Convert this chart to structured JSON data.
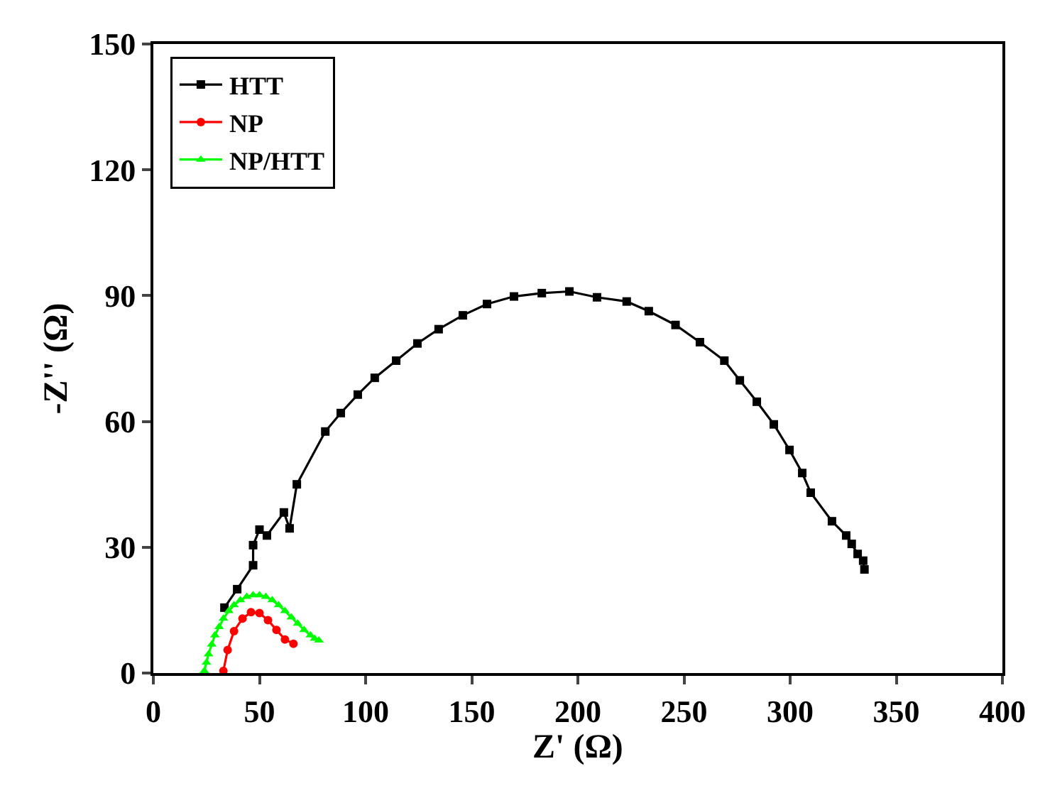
{
  "chart_data": {
    "type": "line",
    "xlabel": "Z' (Ω)",
    "ylabel": "-Z'' (Ω)",
    "xlim": [
      0,
      400
    ],
    "ylim": [
      0,
      150
    ],
    "xticks": [
      0,
      50,
      100,
      150,
      200,
      250,
      300,
      350,
      400
    ],
    "yticks": [
      0,
      30,
      60,
      90,
      120,
      150
    ],
    "grid": false,
    "legend": "top left",
    "line_style": "solid",
    "series": [
      {
        "name": "HTT",
        "color": "#000000",
        "marker": "square",
        "x": [
          33.5,
          39.5,
          47,
          47,
          50,
          53.5,
          61.5,
          64.2,
          67.6,
          81,
          88.3,
          96.3,
          104.3,
          114.4,
          124.4,
          134.4,
          145.8,
          157.2,
          169.9,
          183,
          196,
          209,
          223,
          233.4,
          246,
          257.5,
          269,
          276.3,
          284.3,
          292.3,
          299.7,
          305.7,
          309.7,
          319.7,
          326.4,
          329,
          331.8,
          334.4,
          335
        ],
        "values": [
          15.6,
          20,
          25.7,
          30.5,
          34.2,
          32.8,
          38.3,
          34.5,
          45,
          57.6,
          62,
          66.4,
          70.4,
          74.5,
          78.6,
          82,
          85.3,
          88,
          89.8,
          90.6,
          91,
          89.6,
          88.6,
          86.3,
          83,
          78.9,
          74.5,
          69.8,
          64.7,
          59.3,
          53.2,
          47.7,
          43,
          36.2,
          32.8,
          30.8,
          28.4,
          26.8,
          24.7
        ]
      },
      {
        "name": "NP",
        "color": "#ff0000",
        "marker": "circle",
        "x": [
          33,
          35,
          38,
          42,
          46,
          50,
          54,
          58,
          62,
          66
        ],
        "values": [
          0.5,
          5.5,
          10,
          13,
          14.5,
          14.3,
          12.6,
          10.3,
          8,
          7
        ]
      },
      {
        "name": "NP/HTT",
        "color": "#00ff00",
        "marker": "triangle",
        "x": [
          24,
          25,
          26,
          27.5,
          29,
          31,
          33,
          35.5,
          38,
          41,
          44,
          47,
          50,
          53,
          56,
          59,
          62,
          65,
          68,
          71,
          74,
          76,
          78
        ],
        "values": [
          0.5,
          2.5,
          4.5,
          6.8,
          9,
          11,
          13,
          14.8,
          16.2,
          17.4,
          18.2,
          18.6,
          18.6,
          18.2,
          17.4,
          16.2,
          14.8,
          13.3,
          11.8,
          10.3,
          9,
          8.2,
          7.8
        ]
      }
    ]
  }
}
